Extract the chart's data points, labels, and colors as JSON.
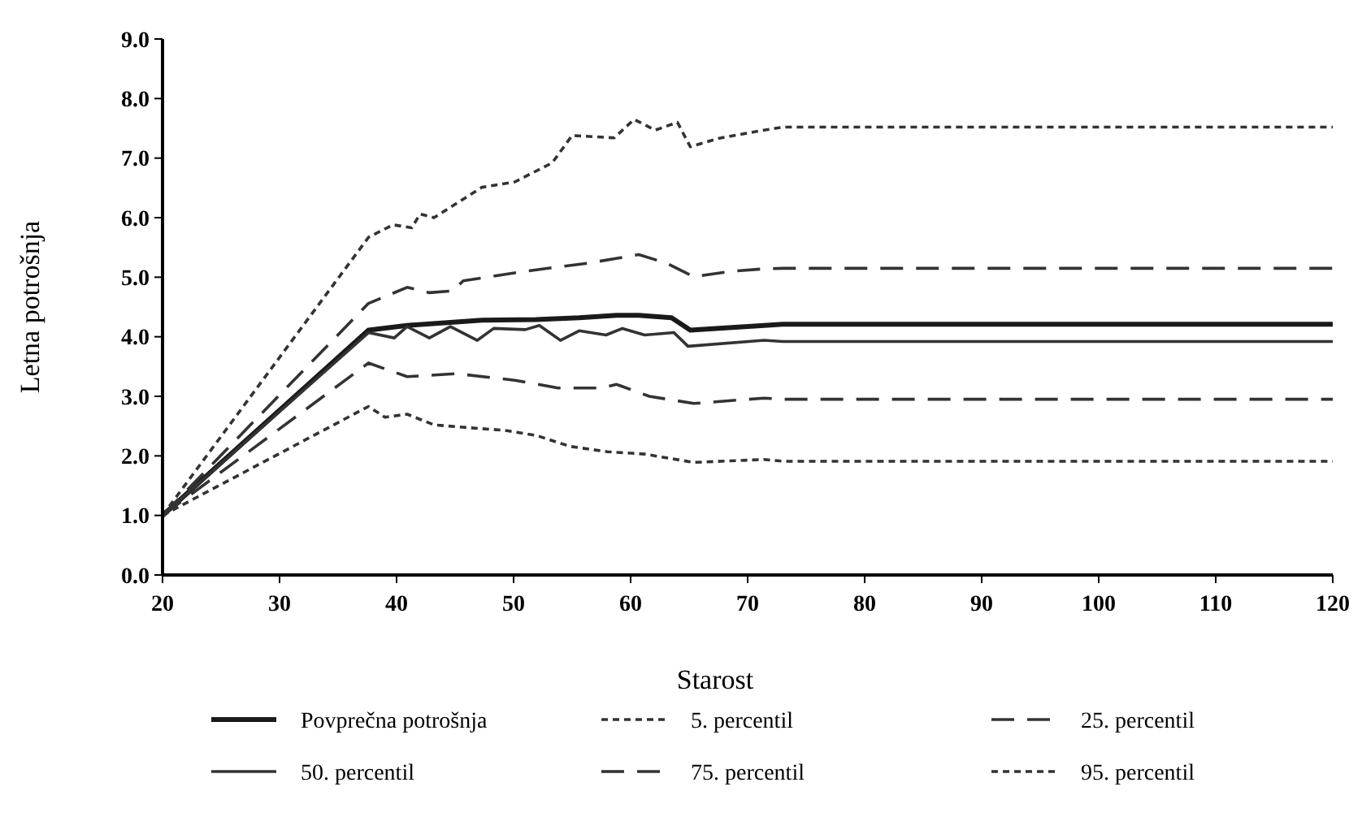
{
  "chart_data": {
    "type": "line",
    "xlabel": "Starost",
    "ylabel": "Letna potrošnja",
    "xlim": [
      20,
      120
    ],
    "ylim": [
      0,
      9
    ],
    "xticks": [
      20,
      30,
      40,
      50,
      60,
      70,
      80,
      90,
      100,
      110,
      120
    ],
    "yticks": [
      {
        "value": 0,
        "label": "0.0"
      },
      {
        "value": 1,
        "label": "1.0"
      },
      {
        "value": 2,
        "label": "2.0"
      },
      {
        "value": 3,
        "label": "3.0"
      },
      {
        "value": 4,
        "label": "4.0"
      },
      {
        "value": 5,
        "label": "5.0"
      },
      {
        "value": 6,
        "label": "6.0"
      },
      {
        "value": 7,
        "label": "7.0"
      },
      {
        "value": 8,
        "label": "8.0"
      },
      {
        "value": 9,
        "label": "9.0"
      }
    ],
    "grid": false,
    "legend": "bottom",
    "marker": "none",
    "series": [
      {
        "name": "Povprečna potrošnja",
        "color": "#1a1a1a",
        "line_style": "solid",
        "x": [
          20,
          37.6,
          40.9,
          47.3,
          51.9,
          55.6,
          58.8,
          60.7,
          63.5,
          65.1,
          71.4,
          73,
          120
        ],
        "values": [
          1.0,
          4.11,
          4.19,
          4.28,
          4.29,
          4.32,
          4.36,
          4.36,
          4.32,
          4.11,
          4.19,
          4.21,
          4.21
        ]
      },
      {
        "name": "5. percentil",
        "color": "#333333",
        "line_style": "dotted",
        "x": [
          20,
          37.6,
          39,
          40.9,
          43.2,
          46.4,
          49.2,
          52,
          54.8,
          58,
          61.2,
          65.4,
          71.4,
          73,
          120
        ],
        "values": [
          1.0,
          2.83,
          2.65,
          2.7,
          2.52,
          2.47,
          2.43,
          2.34,
          2.16,
          2.07,
          2.03,
          1.89,
          1.94,
          1.91,
          1.91
        ]
      },
      {
        "name": "25. percentil",
        "color": "#333333",
        "line_style": "dashed",
        "x": [
          20,
          37.6,
          40.9,
          45.1,
          50.1,
          53.8,
          57.5,
          58.8,
          61.6,
          65.4,
          71.4,
          73,
          120
        ],
        "values": [
          1.0,
          3.56,
          3.33,
          3.38,
          3.27,
          3.14,
          3.14,
          3.2,
          3.0,
          2.88,
          2.97,
          2.95,
          2.95
        ]
      },
      {
        "name": "50. percentil",
        "color": "#333333",
        "line_style": "solid",
        "x": [
          20,
          37.6,
          39.8,
          40.9,
          42.8,
          44.6,
          46.9,
          48.3,
          51,
          52.2,
          54,
          55.6,
          57.9,
          59.3,
          61.2,
          63.7,
          64.9,
          71.4,
          73,
          120
        ],
        "values": [
          1.0,
          4.07,
          3.98,
          4.17,
          3.98,
          4.17,
          3.94,
          4.14,
          4.12,
          4.19,
          3.94,
          4.1,
          4.03,
          4.14,
          4.03,
          4.07,
          3.84,
          3.94,
          3.92,
          3.92
        ]
      },
      {
        "name": "75. percentil",
        "color": "#333333",
        "line_style": "dashed",
        "x": [
          20,
          37.6,
          40.9,
          42.8,
          44.8,
          45.7,
          51,
          56.5,
          60.7,
          63,
          65.4,
          68.6,
          71.4,
          73,
          120
        ],
        "values": [
          1.0,
          4.56,
          4.83,
          4.74,
          4.77,
          4.94,
          5.1,
          5.24,
          5.38,
          5.24,
          5.01,
          5.1,
          5.14,
          5.15,
          5.15
        ]
      },
      {
        "name": "95. percentil",
        "color": "#333333",
        "line_style": "dotted",
        "x": [
          20,
          37.6,
          39.7,
          41.3,
          42,
          43.2,
          47.3,
          50.1,
          53.3,
          55,
          58.6,
          60.3,
          62.1,
          64,
          65.1,
          67.5,
          71.4,
          73,
          120
        ],
        "values": [
          1.0,
          5.67,
          5.88,
          5.83,
          6.06,
          6.0,
          6.51,
          6.6,
          6.92,
          7.38,
          7.34,
          7.65,
          7.47,
          7.6,
          7.19,
          7.33,
          7.47,
          7.52,
          7.52
        ]
      }
    ]
  }
}
